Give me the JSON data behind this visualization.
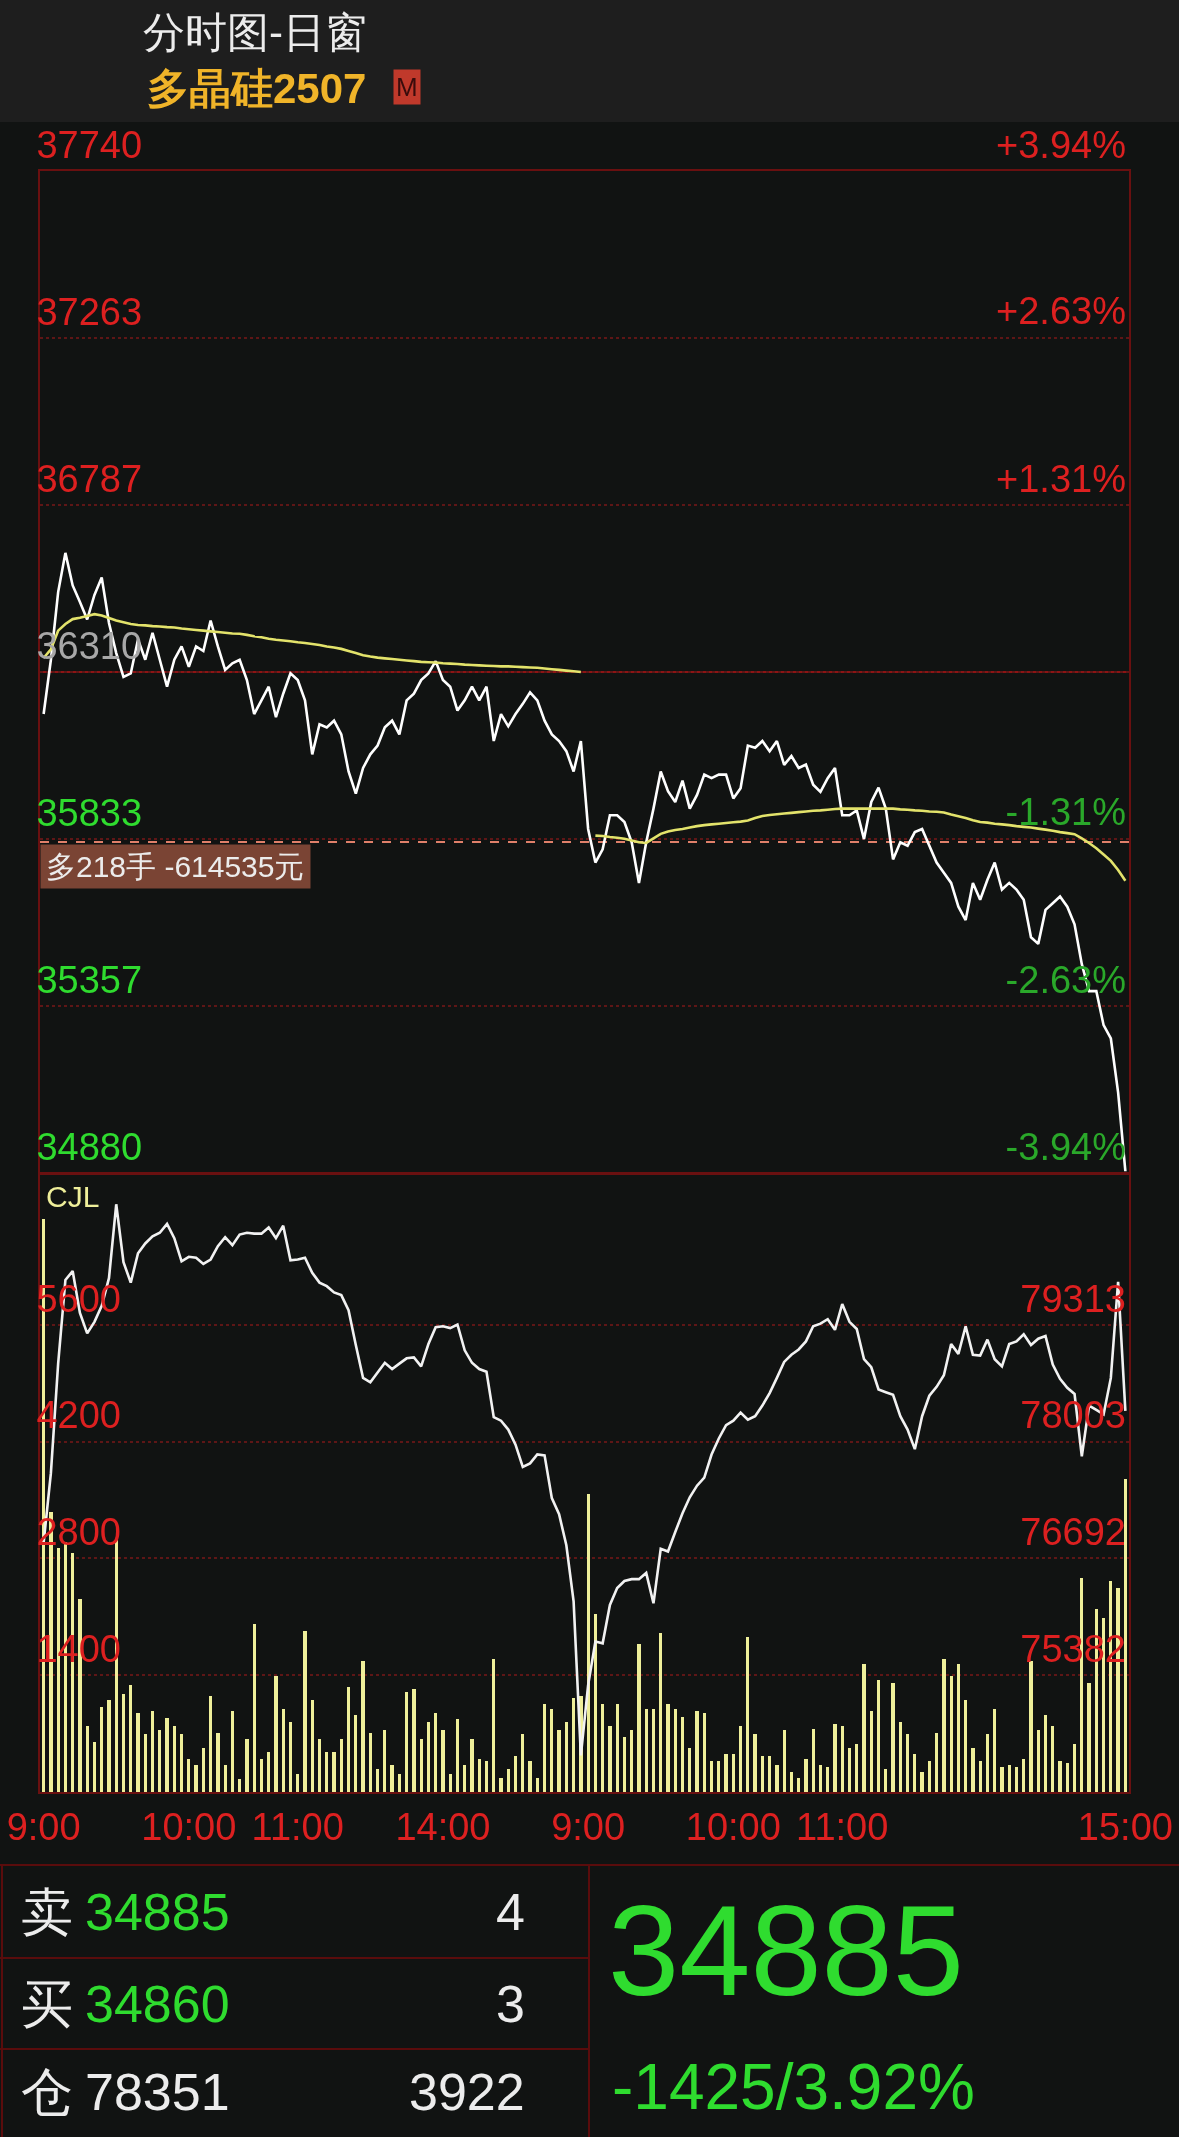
{
  "chart_data": [
    {
      "type": "line",
      "title": "分时图-日窗",
      "subtitle": "多晶硅2507",
      "annotations": [
        "M"
      ],
      "categories": [
        null,
        null,
        null,
        null,
        null,
        null,
        null,
        null,
        null,
        null,
        null,
        null,
        null,
        null,
        null,
        null,
        null,
        null,
        null,
        null,
        null,
        null,
        null,
        null,
        null,
        null,
        null,
        null,
        null,
        null,
        null,
        null,
        null,
        null,
        null,
        null,
        null,
        null,
        null,
        null,
        null,
        null,
        null,
        null,
        null,
        null,
        null,
        null,
        null,
        null,
        null,
        null,
        null,
        null,
        null,
        null,
        null,
        null,
        null,
        null,
        null,
        null,
        null,
        null,
        null,
        null,
        null,
        null,
        null,
        null,
        null,
        null,
        null,
        null,
        null,
        null,
        null,
        null,
        null,
        null,
        null,
        null,
        null,
        null,
        null,
        null,
        null,
        null,
        null,
        null,
        null,
        null,
        null,
        null,
        null,
        null,
        null,
        null,
        null,
        null,
        null,
        null,
        null,
        null,
        null,
        null,
        null,
        null,
        null,
        null,
        null,
        null,
        null,
        null,
        null,
        null,
        null,
        null,
        null,
        null,
        null,
        null,
        null,
        null,
        null,
        null,
        null,
        null,
        null,
        null,
        null,
        null,
        null,
        null,
        null,
        null,
        null,
        null,
        null,
        null,
        null,
        null,
        null,
        null,
        null,
        null,
        null,
        null,
        null,
        null
      ],
      "ylim": [
        34880,
        37740
      ],
      "yticks": [
        37740,
        37263,
        36787,
        36310,
        35833,
        35357,
        34880
      ],
      "y2lim": [
        -3.94,
        3.94
      ],
      "y2ticks": [
        {
          "value": 3.94,
          "label": "+3.94%"
        },
        {
          "value": 2.63,
          "label": "+2.63%"
        },
        {
          "value": 1.31,
          "label": "+1.31%"
        },
        {
          "value": -1.31,
          "label": "-1.31%"
        },
        {
          "value": -2.63,
          "label": "-2.63%"
        },
        {
          "value": -3.94,
          "label": "-3.94%"
        }
      ],
      "grid": "y",
      "ref_lines": [
        {
          "axis": "y",
          "value": 36310,
          "color": "#8c1414"
        },
        {
          "axis": "y",
          "value": 35825,
          "label": "多218手 -614535元",
          "color": "#e0806a",
          "line_style": "dashed"
        }
      ],
      "series": [
        {
          "color": "#ffffff",
          "values": [
            36190,
            36345,
            36538,
            36650,
            36557,
            36510,
            36460,
            36530,
            36580,
            36450,
            36364,
            36296,
            36306,
            36403,
            36345,
            36422,
            36345,
            36268,
            36345,
            36383,
            36325,
            36383,
            36370,
            36457,
            36383,
            36316,
            36335,
            36345,
            36287,
            36190,
            36229,
            36268,
            36181,
            36248,
            36306,
            36287,
            36229,
            36075,
            36161,
            36152,
            36171,
            36132,
            36026,
            35963,
            36036,
            36075,
            36100,
            36152,
            36171,
            36132,
            36229,
            36248,
            36287,
            36306,
            36341,
            36287,
            36268,
            36200,
            36229,
            36268,
            36229,
            36268,
            36113,
            36190,
            36155,
            36190,
            36219,
            36252,
            36229,
            36171,
            36132,
            36113,
            36084,
            36026,
            36113,
            35862,
            35766,
            35804,
            35901,
            35901,
            35882,
            35824,
            35708,
            35824,
            35920,
            36026,
            35970,
            35939,
            36000,
            35920,
            35959,
            36017,
            36007,
            36017,
            36017,
            35949,
            35978,
            36100,
            36094,
            36113,
            36084,
            36113,
            36045,
            36070,
            36036,
            36046,
            35988,
            35968,
            36007,
            36036,
            35901,
            35901,
            35915,
            35833,
            35939,
            35980,
            35920,
            35775,
            35824,
            35814,
            35853,
            35862,
            35814,
            35766,
            35737,
            35708,
            35640,
            35602,
            35708,
            35660,
            35717,
            35766,
            35689,
            35708,
            35689,
            35660,
            35553,
            35534,
            35631,
            35650,
            35669,
            35640,
            35590,
            35476,
            35399,
            35399,
            35302,
            35264,
            35110,
            34885
          ]
        },
        {
          "color": "#e3e36b",
          "values": [
            36350,
            36375,
            36428,
            36447,
            36461,
            36465,
            36470,
            36475,
            36471,
            36464,
            36457,
            36452,
            36447,
            36444,
            36443,
            36441,
            36440,
            36438,
            36437,
            36434,
            36432,
            36430,
            36428,
            36426,
            36424,
            36422,
            36420,
            36419,
            36416,
            36412,
            36409,
            36405,
            36402,
            36400,
            36398,
            36395,
            36393,
            36390,
            36387,
            36383,
            36380,
            36376,
            36370,
            36364,
            36358,
            36354,
            36351,
            36349,
            36347,
            36345,
            36343,
            36341,
            36339,
            36338,
            36337,
            36335,
            36334,
            36333,
            36331,
            36330,
            36329,
            36328,
            36327,
            36326,
            36326,
            36325,
            36324,
            36323,
            36322,
            36320,
            36318,
            36316,
            36314,
            36312,
            36310,
            null,
            35843,
            35842,
            35839,
            35837,
            35834,
            35829,
            35824,
            35822,
            35835,
            35848,
            35855,
            35859,
            35862,
            35866,
            35870,
            35873,
            35875,
            35877,
            35879,
            35881,
            35883,
            35886,
            35893,
            35899,
            35902,
            35904,
            35906,
            35908,
            35910,
            35912,
            35914,
            35915,
            35917,
            35919,
            35920,
            35920,
            35920,
            35920,
            35920,
            35920,
            35920,
            35920,
            35918,
            35917,
            35915,
            35914,
            35912,
            35911,
            35909,
            35903,
            35898,
            35893,
            35887,
            35882,
            35880,
            35877,
            35875,
            35873,
            35870,
            35868,
            35866,
            35863,
            35860,
            35857,
            35853,
            35850,
            35847,
            35835,
            35822,
            35807,
            35789,
            35771,
            35745,
            35714
          ]
        }
      ]
    },
    {
      "type": "bar",
      "categories": [
        "9:00",
        null,
        null,
        null,
        null,
        null,
        null,
        null,
        null,
        null,
        null,
        null,
        null,
        null,
        null,
        null,
        null,
        null,
        null,
        null,
        "10:00",
        null,
        null,
        null,
        null,
        null,
        null,
        null,
        null,
        null,
        null,
        null,
        null,
        null,
        null,
        "11:00",
        null,
        null,
        null,
        null,
        null,
        null,
        null,
        null,
        null,
        null,
        null,
        null,
        null,
        null,
        null,
        null,
        null,
        null,
        null,
        "14:00",
        null,
        null,
        null,
        null,
        null,
        null,
        null,
        null,
        null,
        null,
        null,
        null,
        null,
        null,
        null,
        null,
        null,
        null,
        null,
        "9:00",
        null,
        null,
        null,
        null,
        null,
        null,
        null,
        null,
        null,
        null,
        null,
        null,
        null,
        null,
        null,
        null,
        null,
        null,
        null,
        "10:00",
        null,
        null,
        null,
        null,
        null,
        null,
        null,
        null,
        null,
        null,
        null,
        null,
        null,
        null,
        "11:00",
        null,
        null,
        null,
        null,
        null,
        null,
        null,
        null,
        null,
        null,
        null,
        null,
        null,
        null,
        null,
        null,
        null,
        null,
        null,
        null,
        null,
        null,
        null,
        null,
        null,
        null,
        null,
        null,
        null,
        null,
        null,
        null,
        null,
        null,
        null,
        null,
        null,
        null,
        "15:00"
      ],
      "ylim": [
        0,
        7410
      ],
      "yticks": [
        1400,
        2800,
        4200,
        5600
      ],
      "y2lim": [
        74070,
        81010
      ],
      "y2ticks": [
        75382,
        76692,
        78003,
        79313
      ],
      "grid": "y",
      "series": [
        {
          "name": "CJL",
          "type": "bar",
          "color": "#efef9a",
          "values": [
            6870,
            3360,
            2920,
            3000,
            2870,
            2320,
            790,
            600,
            1020,
            1100,
            3030,
            1180,
            1280,
            950,
            690,
            970,
            740,
            890,
            790,
            690,
            400,
            320,
            530,
            1150,
            710,
            320,
            970,
            160,
            630,
            2010,
            400,
            480,
            1390,
            1000,
            840,
            220,
            1930,
            1100,
            630,
            480,
            480,
            630,
            1260,
            920,
            1570,
            710,
            270,
            740,
            320,
            220,
            1200,
            1230,
            630,
            840,
            950,
            740,
            220,
            870,
            320,
            630,
            400,
            370,
            1600,
            170,
            270,
            430,
            690,
            370,
            170,
            1050,
            1000,
            740,
            840,
            1130,
            1150,
            3570,
            2140,
            1050,
            790,
            1050,
            660,
            740,
            1780,
            1000,
            1000,
            1910,
            1050,
            1000,
            900,
            530,
            970,
            950,
            370,
            370,
            450,
            450,
            790,
            1860,
            690,
            430,
            430,
            320,
            740,
            240,
            170,
            400,
            760,
            320,
            300,
            820,
            790,
            530,
            580,
            1540,
            970,
            1340,
            270,
            1310,
            840,
            690,
            450,
            240,
            370,
            710,
            1600,
            1390,
            1540,
            1100,
            530,
            370,
            690,
            1000,
            300,
            320,
            300,
            400,
            1570,
            740,
            920,
            790,
            370,
            350,
            580,
            2560,
            1310,
            2190,
            2090,
            2530,
            2450,
            3750
          ]
        },
        {
          "type": "line",
          "axis": "y2",
          "color": "#f2f2f2",
          "values": [
            76870,
            77650,
            78880,
            79820,
            79920,
            79450,
            79220,
            79350,
            79530,
            79840,
            80670,
            80020,
            79790,
            80120,
            80230,
            80310,
            80350,
            80450,
            80290,
            80030,
            80080,
            80070,
            80000,
            80050,
            80200,
            80300,
            80210,
            80330,
            80350,
            80340,
            80340,
            80410,
            80290,
            80430,
            80040,
            80050,
            80070,
            79900,
            79790,
            79750,
            79680,
            79650,
            79480,
            79090,
            78720,
            78670,
            78780,
            78890,
            78820,
            78880,
            78940,
            78950,
            78850,
            79100,
            79290,
            79300,
            79280,
            79320,
            79030,
            78890,
            78820,
            78790,
            78280,
            78240,
            78140,
            77970,
            77720,
            77760,
            77860,
            77850,
            77370,
            77190,
            76840,
            76210,
            74480,
            75270,
            75760,
            75740,
            76170,
            76360,
            76440,
            76460,
            76460,
            76530,
            76190,
            76800,
            76770,
            76990,
            77200,
            77380,
            77510,
            77600,
            77860,
            78040,
            78190,
            78240,
            78330,
            78250,
            78290,
            78410,
            78550,
            78720,
            78900,
            78980,
            79040,
            79130,
            79300,
            79330,
            79380,
            79260,
            79550,
            79350,
            79270,
            78930,
            78840,
            78590,
            78560,
            78530,
            78290,
            78140,
            77920,
            78290,
            78520,
            78620,
            78750,
            79100,
            78990,
            79300,
            78980,
            78970,
            79150,
            78930,
            78850,
            79100,
            79130,
            79210,
            79090,
            79160,
            79190,
            78870,
            78710,
            78610,
            78540,
            77840,
            78410,
            78360,
            78310,
            78720,
            79800,
            78350
          ]
        }
      ]
    },
    {
      "type": "other",
      "annotations": [
        "卖",
        "34885",
        "4",
        "买",
        "34860",
        "3",
        "仓",
        "78351",
        "3922",
        "34885",
        "-1425/3.92%"
      ]
    }
  ]
}
